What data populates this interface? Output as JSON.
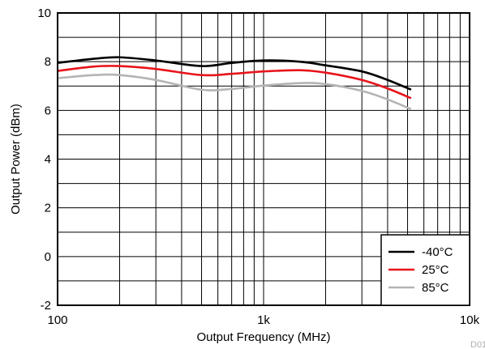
{
  "chart_data": {
    "type": "line",
    "xlabel": "Output Frequency (MHz)",
    "ylabel": "Output Power (dBm)",
    "x_scale": "log",
    "xlim": [
      100,
      10000
    ],
    "ylim": [
      -2,
      10
    ],
    "x_ticks": [
      100,
      1000,
      10000
    ],
    "x_tick_labels": [
      "100",
      "1k",
      "10k"
    ],
    "y_ticks": [
      -2,
      0,
      2,
      4,
      6,
      8,
      10
    ],
    "y_tick_labels": [
      "-2",
      "0",
      "2",
      "4",
      "6",
      "8",
      "10"
    ],
    "grid": true,
    "legend_position": "bottom-right",
    "corner_label": "D01",
    "series": [
      {
        "name": "-40°C",
        "color": "#000000",
        "x": [
          100,
          150,
          200,
          300,
          500,
          700,
          1000,
          1500,
          2000,
          3000,
          4000,
          5200
        ],
        "y": [
          7.95,
          8.12,
          8.18,
          8.05,
          7.82,
          7.95,
          8.05,
          8.0,
          7.85,
          7.6,
          7.25,
          6.85
        ]
      },
      {
        "name": "25°C",
        "color": "#e8141b",
        "x": [
          100,
          150,
          200,
          300,
          500,
          700,
          1000,
          1500,
          2000,
          3000,
          4000,
          5200
        ],
        "y": [
          7.62,
          7.8,
          7.82,
          7.7,
          7.45,
          7.5,
          7.6,
          7.65,
          7.55,
          7.25,
          6.9,
          6.5
        ]
      },
      {
        "name": "85°C",
        "color": "#b4b4b4",
        "x": [
          100,
          150,
          200,
          300,
          500,
          700,
          1000,
          1500,
          2000,
          3000,
          4000,
          5200
        ],
        "y": [
          7.32,
          7.45,
          7.45,
          7.25,
          6.85,
          6.88,
          7.02,
          7.12,
          7.08,
          6.8,
          6.45,
          6.05
        ]
      }
    ]
  }
}
